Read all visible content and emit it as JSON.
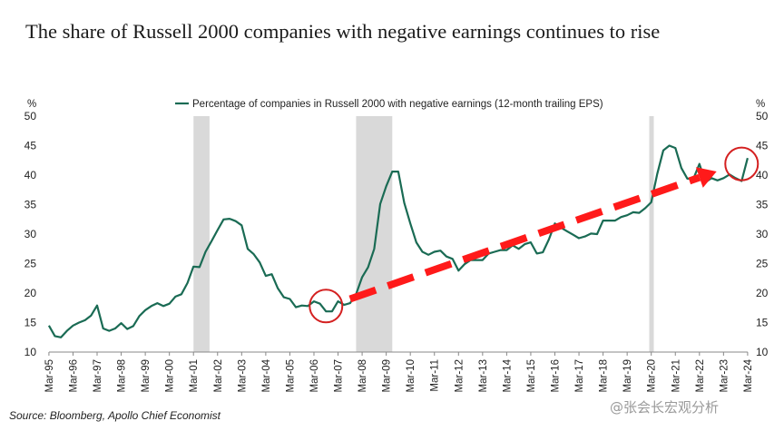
{
  "title": "The share of Russell 2000 companies with negative earnings continues to rise",
  "source": "Source: Bloomberg, Apollo Chief Economist",
  "watermark": "@张会长宏观分析",
  "colors": {
    "series": "#1a6b54",
    "recession": "#d9d9d9",
    "arrow": "#ff1a1a",
    "circle": "#d42020"
  },
  "chart_data": {
    "type": "line",
    "title": "The share of Russell 2000 companies with negative earnings continues to rise",
    "y_unit_left": "%",
    "y_unit_right": "%",
    "ylim": [
      10,
      50
    ],
    "yticks": [
      10,
      15,
      20,
      25,
      30,
      35,
      40,
      45,
      50
    ],
    "xlim": [
      1995.17,
      2024.17
    ],
    "x_tick_labels": [
      "Mar-95",
      "Mar-96",
      "Mar-97",
      "Mar-98",
      "Mar-99",
      "Mar-00",
      "Mar-01",
      "Mar-02",
      "Mar-03",
      "Mar-04",
      "Mar-05",
      "Mar-06",
      "Mar-07",
      "Mar-08",
      "Mar-09",
      "Mar-10",
      "Mar-11",
      "Mar-12",
      "Mar-13",
      "Mar-14",
      "Mar-15",
      "Mar-16",
      "Mar-17",
      "Mar-18",
      "Mar-19",
      "Mar-20",
      "Mar-21",
      "Mar-22",
      "Mar-23",
      "Mar-24"
    ],
    "legend": "top-center",
    "grid": false,
    "recessions": [
      {
        "start": "Mar-01",
        "end": "Nov-01"
      },
      {
        "start": "Dec-07",
        "end": "Jun-09"
      },
      {
        "start": "Feb-20",
        "end": "Apr-20"
      }
    ],
    "series": [
      {
        "name": "Percentage of companies in Russell 2000 with negative earnings (12-month trailing EPS)",
        "points": [
          [
            "Mar-95",
            14.5
          ],
          [
            "Jun-95",
            12.7
          ],
          [
            "Sep-95",
            12.5
          ],
          [
            "Dec-95",
            13.6
          ],
          [
            "Mar-96",
            14.5
          ],
          [
            "Jun-96",
            15.0
          ],
          [
            "Sep-96",
            15.4
          ],
          [
            "Dec-96",
            16.2
          ],
          [
            "Mar-97",
            17.9
          ],
          [
            "Jun-97",
            14.0
          ],
          [
            "Sep-97",
            13.6
          ],
          [
            "Dec-97",
            14.0
          ],
          [
            "Mar-98",
            14.9
          ],
          [
            "Jun-98",
            13.9
          ],
          [
            "Sep-98",
            14.4
          ],
          [
            "Dec-98",
            16.1
          ],
          [
            "Mar-99",
            17.1
          ],
          [
            "Jun-99",
            17.8
          ],
          [
            "Sep-99",
            18.3
          ],
          [
            "Dec-99",
            17.8
          ],
          [
            "Mar-00",
            18.2
          ],
          [
            "Jun-00",
            19.4
          ],
          [
            "Sep-00",
            19.8
          ],
          [
            "Dec-00",
            21.7
          ],
          [
            "Mar-01",
            24.5
          ],
          [
            "Jun-01",
            24.4
          ],
          [
            "Sep-01",
            27.0
          ],
          [
            "Dec-01",
            28.8
          ],
          [
            "Mar-02",
            30.7
          ],
          [
            "Jun-02",
            32.5
          ],
          [
            "Sep-02",
            32.6
          ],
          [
            "Dec-02",
            32.2
          ],
          [
            "Mar-03",
            31.5
          ],
          [
            "Jun-03",
            27.5
          ],
          [
            "Sep-03",
            26.6
          ],
          [
            "Dec-03",
            25.2
          ],
          [
            "Mar-04",
            22.9
          ],
          [
            "Jun-04",
            23.2
          ],
          [
            "Sep-04",
            20.8
          ],
          [
            "Dec-04",
            19.3
          ],
          [
            "Mar-05",
            19.0
          ],
          [
            "Jun-05",
            17.6
          ],
          [
            "Sep-05",
            17.9
          ],
          [
            "Dec-05",
            17.8
          ],
          [
            "Mar-06",
            18.6
          ],
          [
            "Jun-06",
            18.2
          ],
          [
            "Sep-06",
            16.9
          ],
          [
            "Dec-06",
            16.9
          ],
          [
            "Mar-07",
            18.6
          ],
          [
            "Jun-07",
            18.0
          ],
          [
            "Sep-07",
            18.3
          ],
          [
            "Dec-07",
            19.8
          ],
          [
            "Mar-08",
            22.7
          ],
          [
            "Jun-08",
            24.4
          ],
          [
            "Sep-08",
            27.5
          ],
          [
            "Dec-08",
            35.1
          ],
          [
            "Mar-09",
            38.1
          ],
          [
            "Jun-09",
            40.6
          ],
          [
            "Sep-09",
            40.6
          ],
          [
            "Dec-09",
            35.3
          ],
          [
            "Mar-10",
            31.8
          ],
          [
            "Jun-10",
            28.6
          ],
          [
            "Sep-10",
            27.0
          ],
          [
            "Dec-10",
            26.5
          ],
          [
            "Mar-11",
            27.0
          ],
          [
            "Jun-11",
            27.2
          ],
          [
            "Sep-11",
            26.2
          ],
          [
            "Dec-11",
            25.8
          ],
          [
            "Mar-12",
            23.8
          ],
          [
            "Jun-12",
            24.9
          ],
          [
            "Sep-12",
            25.6
          ],
          [
            "Dec-12",
            25.6
          ],
          [
            "Mar-13",
            25.6
          ],
          [
            "Jun-13",
            26.7
          ],
          [
            "Sep-13",
            27.0
          ],
          [
            "Dec-13",
            27.3
          ],
          [
            "Mar-14",
            27.3
          ],
          [
            "Jun-14",
            28.1
          ],
          [
            "Sep-14",
            27.5
          ],
          [
            "Dec-14",
            28.3
          ],
          [
            "Mar-15",
            28.6
          ],
          [
            "Jun-15",
            26.7
          ],
          [
            "Sep-15",
            26.9
          ],
          [
            "Dec-15",
            29.1
          ],
          [
            "Mar-16",
            31.8
          ],
          [
            "Jun-16",
            31.1
          ],
          [
            "Sep-16",
            30.5
          ],
          [
            "Dec-16",
            29.9
          ],
          [
            "Mar-17",
            29.3
          ],
          [
            "Jun-17",
            29.6
          ],
          [
            "Sep-17",
            30.1
          ],
          [
            "Dec-17",
            30.0
          ],
          [
            "Mar-18",
            32.3
          ],
          [
            "Jun-18",
            32.3
          ],
          [
            "Sep-18",
            32.3
          ],
          [
            "Dec-18",
            32.9
          ],
          [
            "Mar-19",
            33.2
          ],
          [
            "Jun-19",
            33.7
          ],
          [
            "Sep-19",
            33.6
          ],
          [
            "Dec-19",
            34.4
          ],
          [
            "Mar-20",
            35.4
          ],
          [
            "Jun-20",
            40.2
          ],
          [
            "Sep-20",
            44.2
          ],
          [
            "Dec-20",
            45.0
          ],
          [
            "Mar-21",
            44.6
          ],
          [
            "Jun-21",
            41.2
          ],
          [
            "Sep-21",
            39.4
          ],
          [
            "Dec-21",
            39.4
          ],
          [
            "Mar-22",
            41.9
          ],
          [
            "Jun-22",
            38.8
          ],
          [
            "Sep-22",
            39.5
          ],
          [
            "Dec-22",
            39.1
          ],
          [
            "Mar-23",
            39.5
          ],
          [
            "Jun-23",
            40.1
          ],
          [
            "Sep-23",
            39.5
          ],
          [
            "Dec-23",
            39.0
          ],
          [
            "Mar-24",
            42.9
          ]
        ]
      }
    ]
  }
}
